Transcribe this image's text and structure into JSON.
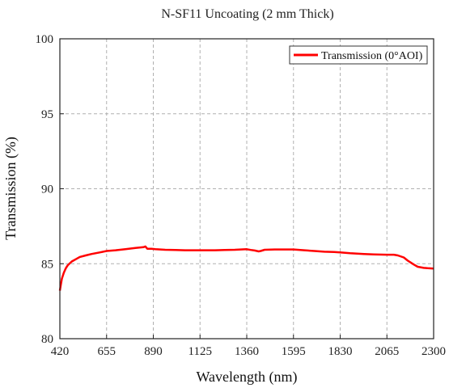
{
  "chart_data": {
    "type": "line",
    "title": "N-SF11 Uncoating (2 mm Thick)",
    "xlabel": "Wavelength (nm)",
    "ylabel": "Transmission (%)",
    "xlim": [
      420,
      2300
    ],
    "ylim": [
      80,
      100
    ],
    "xticks": [
      420,
      655,
      890,
      1125,
      1360,
      1595,
      1830,
      2065,
      2300
    ],
    "yticks": [
      80,
      85,
      90,
      95,
      100
    ],
    "grid": true,
    "legend_position": "top-right",
    "series": [
      {
        "name": "Transmission (0°AOI)",
        "color": "#ff0000",
        "x": [
          420,
          425,
          430,
          440,
          450,
          460,
          480,
          500,
          520,
          550,
          580,
          620,
          655,
          700,
          750,
          800,
          840,
          850,
          860,
          880,
          900,
          950,
          1000,
          1050,
          1100,
          1125,
          1200,
          1250,
          1300,
          1360,
          1380,
          1400,
          1420,
          1430,
          1450,
          1500,
          1550,
          1595,
          1650,
          1700,
          1750,
          1800,
          1830,
          1880,
          1950,
          2000,
          2065,
          2100,
          2120,
          2150,
          2170,
          2200,
          2220,
          2250,
          2270,
          2300
        ],
        "y": [
          83.2,
          83.6,
          84.0,
          84.4,
          84.7,
          84.9,
          85.15,
          85.3,
          85.45,
          85.55,
          85.65,
          85.75,
          85.85,
          85.9,
          85.97,
          86.05,
          86.1,
          86.15,
          86.0,
          86.0,
          85.97,
          85.93,
          85.92,
          85.9,
          85.9,
          85.9,
          85.9,
          85.92,
          85.93,
          85.97,
          85.92,
          85.88,
          85.82,
          85.85,
          85.93,
          85.95,
          85.95,
          85.95,
          85.9,
          85.85,
          85.8,
          85.78,
          85.75,
          85.7,
          85.65,
          85.62,
          85.6,
          85.6,
          85.55,
          85.42,
          85.2,
          84.95,
          84.8,
          84.72,
          84.7,
          84.68
        ]
      }
    ]
  }
}
